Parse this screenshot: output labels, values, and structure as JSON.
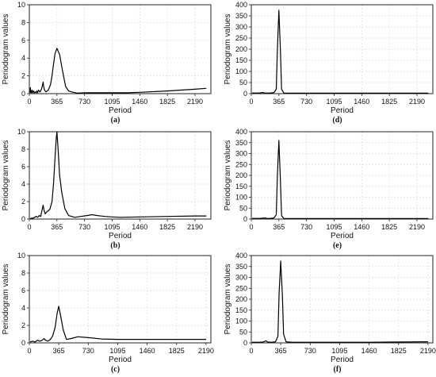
{
  "chart_data": [
    {
      "id": "a",
      "type": "line",
      "caption": "(a)",
      "xlabel": "Period",
      "ylabel": "Periodogram values",
      "xlim": [
        0,
        2400
      ],
      "ylim": [
        0,
        10
      ],
      "xticks": [
        0,
        365,
        730,
        1095,
        1460,
        1825,
        2190
      ],
      "yticks": [
        0,
        2,
        4,
        6,
        8,
        10
      ],
      "grid": true,
      "series": [
        {
          "x": [
            10,
            14,
            18,
            25,
            35,
            45,
            55,
            65,
            75,
            90,
            100,
            110,
            120,
            140,
            160,
            175,
            182,
            190,
            200,
            220,
            250,
            280,
            300,
            320,
            340,
            365,
            400,
            440,
            480,
            520,
            560,
            640,
            730,
            900,
            1095,
            1300,
            1460,
            1825,
            2190,
            2340
          ],
          "y": [
            0.1,
            0.7,
            0.2,
            0.1,
            0.4,
            0.1,
            0.3,
            0.1,
            0.2,
            0.1,
            0.3,
            0.1,
            0.4,
            0.2,
            0.5,
            1.0,
            1.3,
            0.8,
            0.4,
            0.2,
            0.4,
            1.0,
            2.0,
            3.3,
            4.5,
            5.1,
            4.4,
            2.5,
            0.8,
            0.3,
            0.2,
            0.05,
            0.1,
            0.1,
            0.1,
            0.1,
            0.15,
            0.3,
            0.5,
            0.6
          ]
        }
      ]
    },
    {
      "id": "d",
      "type": "line",
      "caption": "(d)",
      "xlabel": "Period",
      "ylabel": "Periodogram values",
      "xlim": [
        0,
        2400
      ],
      "ylim": [
        0,
        400
      ],
      "xticks": [
        0,
        365,
        730,
        1095,
        1460,
        1825,
        2190
      ],
      "yticks": [
        0,
        50,
        100,
        150,
        200,
        250,
        300,
        350,
        400
      ],
      "grid": true,
      "series": [
        {
          "x": [
            10,
            100,
            150,
            175,
            190,
            250,
            300,
            330,
            345,
            365,
            385,
            400,
            430,
            500,
            730,
            1095,
            1460,
            1825,
            2190,
            2340
          ],
          "y": [
            3,
            3,
            5,
            3,
            3,
            3,
            5,
            20,
            200,
            375,
            200,
            20,
            3,
            2,
            2,
            2,
            2,
            2,
            2,
            2
          ]
        }
      ]
    },
    {
      "id": "b",
      "type": "line",
      "caption": "(b)",
      "xlabel": "Period",
      "ylabel": "Periodogram values",
      "xlim": [
        0,
        2400
      ],
      "ylim": [
        0,
        10
      ],
      "xticks": [
        0,
        365,
        730,
        1095,
        1460,
        1825,
        2190
      ],
      "yticks": [
        0,
        2,
        4,
        6,
        8,
        10
      ],
      "grid": true,
      "series": [
        {
          "x": [
            10,
            30,
            50,
            70,
            90,
            110,
            130,
            150,
            165,
            182,
            195,
            210,
            240,
            270,
            300,
            320,
            340,
            355,
            365,
            380,
            400,
            430,
            470,
            520,
            600,
            680,
            760,
            830,
            900,
            1000,
            1095,
            1200,
            1460,
            1825,
            2190,
            2340
          ],
          "y": [
            0.05,
            0.1,
            0.1,
            0.2,
            0.3,
            0.2,
            0.4,
            0.3,
            0.9,
            1.6,
            1.0,
            0.6,
            0.9,
            1.1,
            2.0,
            4.0,
            7.0,
            9.2,
            10.0,
            8.0,
            5.0,
            3.0,
            1.2,
            0.4,
            0.2,
            0.3,
            0.4,
            0.5,
            0.4,
            0.3,
            0.25,
            0.2,
            0.25,
            0.3,
            0.35,
            0.35
          ]
        }
      ]
    },
    {
      "id": "e",
      "type": "line",
      "caption": "(e)",
      "xlabel": "Period",
      "ylabel": "Periodogram values",
      "xlim": [
        0,
        2400
      ],
      "ylim": [
        0,
        400
      ],
      "xticks": [
        0,
        365,
        730,
        1095,
        1460,
        1825,
        2190
      ],
      "yticks": [
        0,
        50,
        100,
        150,
        200,
        250,
        300,
        350,
        400
      ],
      "grid": true,
      "series": [
        {
          "x": [
            10,
            100,
            150,
            182,
            200,
            250,
            300,
            330,
            345,
            365,
            385,
            400,
            430,
            500,
            730,
            1095,
            1460,
            1825,
            2190,
            2340
          ],
          "y": [
            3,
            3,
            4,
            5,
            3,
            3,
            5,
            20,
            200,
            360,
            180,
            15,
            3,
            2,
            2,
            2,
            2,
            2,
            2,
            2
          ]
        }
      ]
    },
    {
      "id": "c",
      "type": "line",
      "caption": "(c)",
      "xlabel": "Period",
      "ylabel": "Periodogram values",
      "xlim": [
        0,
        2250
      ],
      "ylim": [
        0,
        10
      ],
      "xticks": [
        0,
        365,
        730,
        1095,
        1460,
        1825,
        2190
      ],
      "yticks": [
        0,
        2,
        4,
        6,
        8,
        10
      ],
      "grid": true,
      "series": [
        {
          "x": [
            10,
            40,
            70,
            100,
            130,
            160,
            182,
            200,
            230,
            260,
            290,
            320,
            345,
            365,
            390,
            420,
            460,
            520,
            600,
            730,
            900,
            1095,
            1460,
            1825,
            2190
          ],
          "y": [
            0.1,
            0.2,
            0.1,
            0.3,
            0.2,
            0.3,
            0.5,
            0.3,
            0.2,
            0.4,
            0.8,
            1.8,
            3.4,
            4.2,
            3.0,
            1.5,
            0.4,
            0.5,
            0.7,
            0.6,
            0.45,
            0.4,
            0.4,
            0.4,
            0.4
          ]
        }
      ]
    },
    {
      "id": "f",
      "type": "line",
      "caption": "(f)",
      "xlabel": "Period",
      "ylabel": "Periodogram values",
      "xlim": [
        0,
        2250
      ],
      "ylim": [
        0,
        400
      ],
      "xticks": [
        0,
        365,
        730,
        1095,
        1460,
        1825,
        2190
      ],
      "yticks": [
        0,
        50,
        100,
        150,
        200,
        250,
        300,
        350,
        400
      ],
      "grid": true,
      "series": [
        {
          "x": [
            10,
            100,
            150,
            182,
            200,
            250,
            300,
            330,
            345,
            365,
            385,
            400,
            430,
            500,
            730,
            1095,
            1460,
            1825,
            2190
          ],
          "y": [
            3,
            3,
            4,
            10,
            4,
            3,
            5,
            30,
            230,
            375,
            220,
            40,
            5,
            3,
            3,
            3,
            3,
            4,
            5
          ]
        }
      ]
    }
  ]
}
